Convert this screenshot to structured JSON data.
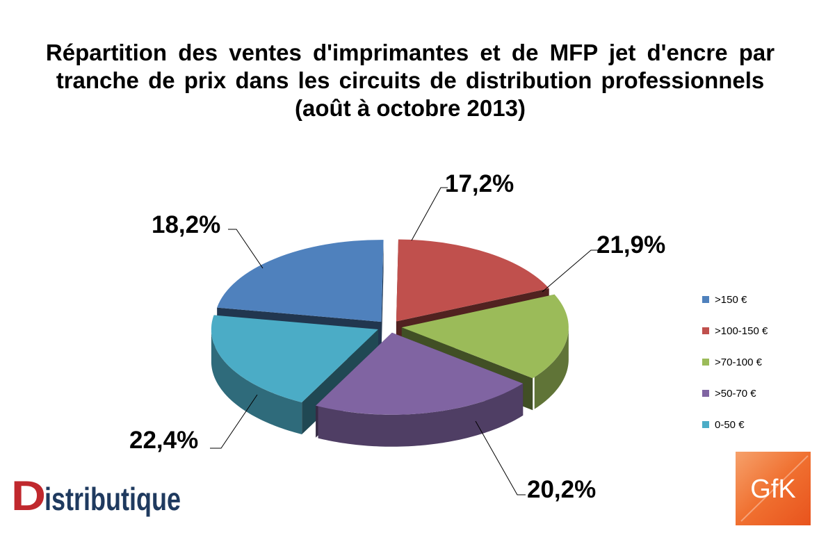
{
  "title": {
    "line1": "Répartition des ventes d'imprimantes et de MFP jet d'encre par",
    "line2": "tranche de prix dans les circuits de distribution professionnels",
    "line3": "(août à octobre  2013)"
  },
  "chart_data": {
    "type": "pie",
    "style": "3d-exploded",
    "title": "Répartition des ventes d'imprimantes et de MFP jet d'encre par tranche de prix dans les circuits de distribution professionnels (août à octobre  2013)",
    "legend_position": "right",
    "slices": [
      {
        "name": ">150 €",
        "value": 22.4,
        "label": "22,4%",
        "color": "#4F81BD"
      },
      {
        "name": ">100-150 €",
        "value": 18.2,
        "label": "18,2%",
        "color": "#C0504D"
      },
      {
        "name": ">70-100 €",
        "value": 17.2,
        "label": "17,2%",
        "color": "#9BBB59"
      },
      {
        "name": ">50-70 €",
        "value": 21.9,
        "label": "21,9%",
        "color": "#8064A2"
      },
      {
        "name": "0-50 €",
        "value": 20.2,
        "label": "20,2%",
        "color": "#4BACC6"
      }
    ]
  },
  "logos": {
    "distributique": "Distributique",
    "gfk": "GfK"
  }
}
